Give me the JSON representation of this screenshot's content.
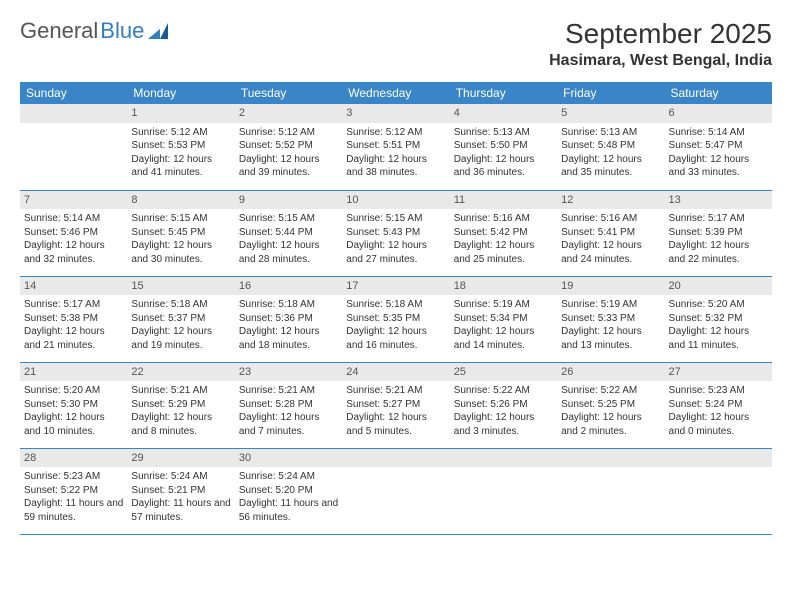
{
  "logo": {
    "text1": "General",
    "text2": "Blue"
  },
  "title": "September 2025",
  "location": "Hasimara, West Bengal, India",
  "colors": {
    "header_bg": "#3985c7",
    "header_text": "#ffffff",
    "daynum_bg": "#e9e9e9",
    "border": "#3985c7",
    "text": "#333333"
  },
  "weekdays": [
    "Sunday",
    "Monday",
    "Tuesday",
    "Wednesday",
    "Thursday",
    "Friday",
    "Saturday"
  ],
  "weeks": [
    [
      {
        "n": "",
        "sr": "",
        "ss": "",
        "dl": ""
      },
      {
        "n": "1",
        "sr": "Sunrise: 5:12 AM",
        "ss": "Sunset: 5:53 PM",
        "dl": "Daylight: 12 hours and 41 minutes."
      },
      {
        "n": "2",
        "sr": "Sunrise: 5:12 AM",
        "ss": "Sunset: 5:52 PM",
        "dl": "Daylight: 12 hours and 39 minutes."
      },
      {
        "n": "3",
        "sr": "Sunrise: 5:12 AM",
        "ss": "Sunset: 5:51 PM",
        "dl": "Daylight: 12 hours and 38 minutes."
      },
      {
        "n": "4",
        "sr": "Sunrise: 5:13 AM",
        "ss": "Sunset: 5:50 PM",
        "dl": "Daylight: 12 hours and 36 minutes."
      },
      {
        "n": "5",
        "sr": "Sunrise: 5:13 AM",
        "ss": "Sunset: 5:48 PM",
        "dl": "Daylight: 12 hours and 35 minutes."
      },
      {
        "n": "6",
        "sr": "Sunrise: 5:14 AM",
        "ss": "Sunset: 5:47 PM",
        "dl": "Daylight: 12 hours and 33 minutes."
      }
    ],
    [
      {
        "n": "7",
        "sr": "Sunrise: 5:14 AM",
        "ss": "Sunset: 5:46 PM",
        "dl": "Daylight: 12 hours and 32 minutes."
      },
      {
        "n": "8",
        "sr": "Sunrise: 5:15 AM",
        "ss": "Sunset: 5:45 PM",
        "dl": "Daylight: 12 hours and 30 minutes."
      },
      {
        "n": "9",
        "sr": "Sunrise: 5:15 AM",
        "ss": "Sunset: 5:44 PM",
        "dl": "Daylight: 12 hours and 28 minutes."
      },
      {
        "n": "10",
        "sr": "Sunrise: 5:15 AM",
        "ss": "Sunset: 5:43 PM",
        "dl": "Daylight: 12 hours and 27 minutes."
      },
      {
        "n": "11",
        "sr": "Sunrise: 5:16 AM",
        "ss": "Sunset: 5:42 PM",
        "dl": "Daylight: 12 hours and 25 minutes."
      },
      {
        "n": "12",
        "sr": "Sunrise: 5:16 AM",
        "ss": "Sunset: 5:41 PM",
        "dl": "Daylight: 12 hours and 24 minutes."
      },
      {
        "n": "13",
        "sr": "Sunrise: 5:17 AM",
        "ss": "Sunset: 5:39 PM",
        "dl": "Daylight: 12 hours and 22 minutes."
      }
    ],
    [
      {
        "n": "14",
        "sr": "Sunrise: 5:17 AM",
        "ss": "Sunset: 5:38 PM",
        "dl": "Daylight: 12 hours and 21 minutes."
      },
      {
        "n": "15",
        "sr": "Sunrise: 5:18 AM",
        "ss": "Sunset: 5:37 PM",
        "dl": "Daylight: 12 hours and 19 minutes."
      },
      {
        "n": "16",
        "sr": "Sunrise: 5:18 AM",
        "ss": "Sunset: 5:36 PM",
        "dl": "Daylight: 12 hours and 18 minutes."
      },
      {
        "n": "17",
        "sr": "Sunrise: 5:18 AM",
        "ss": "Sunset: 5:35 PM",
        "dl": "Daylight: 12 hours and 16 minutes."
      },
      {
        "n": "18",
        "sr": "Sunrise: 5:19 AM",
        "ss": "Sunset: 5:34 PM",
        "dl": "Daylight: 12 hours and 14 minutes."
      },
      {
        "n": "19",
        "sr": "Sunrise: 5:19 AM",
        "ss": "Sunset: 5:33 PM",
        "dl": "Daylight: 12 hours and 13 minutes."
      },
      {
        "n": "20",
        "sr": "Sunrise: 5:20 AM",
        "ss": "Sunset: 5:32 PM",
        "dl": "Daylight: 12 hours and 11 minutes."
      }
    ],
    [
      {
        "n": "21",
        "sr": "Sunrise: 5:20 AM",
        "ss": "Sunset: 5:30 PM",
        "dl": "Daylight: 12 hours and 10 minutes."
      },
      {
        "n": "22",
        "sr": "Sunrise: 5:21 AM",
        "ss": "Sunset: 5:29 PM",
        "dl": "Daylight: 12 hours and 8 minutes."
      },
      {
        "n": "23",
        "sr": "Sunrise: 5:21 AM",
        "ss": "Sunset: 5:28 PM",
        "dl": "Daylight: 12 hours and 7 minutes."
      },
      {
        "n": "24",
        "sr": "Sunrise: 5:21 AM",
        "ss": "Sunset: 5:27 PM",
        "dl": "Daylight: 12 hours and 5 minutes."
      },
      {
        "n": "25",
        "sr": "Sunrise: 5:22 AM",
        "ss": "Sunset: 5:26 PM",
        "dl": "Daylight: 12 hours and 3 minutes."
      },
      {
        "n": "26",
        "sr": "Sunrise: 5:22 AM",
        "ss": "Sunset: 5:25 PM",
        "dl": "Daylight: 12 hours and 2 minutes."
      },
      {
        "n": "27",
        "sr": "Sunrise: 5:23 AM",
        "ss": "Sunset: 5:24 PM",
        "dl": "Daylight: 12 hours and 0 minutes."
      }
    ],
    [
      {
        "n": "28",
        "sr": "Sunrise: 5:23 AM",
        "ss": "Sunset: 5:22 PM",
        "dl": "Daylight: 11 hours and 59 minutes."
      },
      {
        "n": "29",
        "sr": "Sunrise: 5:24 AM",
        "ss": "Sunset: 5:21 PM",
        "dl": "Daylight: 11 hours and 57 minutes."
      },
      {
        "n": "30",
        "sr": "Sunrise: 5:24 AM",
        "ss": "Sunset: 5:20 PM",
        "dl": "Daylight: 11 hours and 56 minutes."
      },
      {
        "n": "",
        "sr": "",
        "ss": "",
        "dl": ""
      },
      {
        "n": "",
        "sr": "",
        "ss": "",
        "dl": ""
      },
      {
        "n": "",
        "sr": "",
        "ss": "",
        "dl": ""
      },
      {
        "n": "",
        "sr": "",
        "ss": "",
        "dl": ""
      }
    ]
  ]
}
